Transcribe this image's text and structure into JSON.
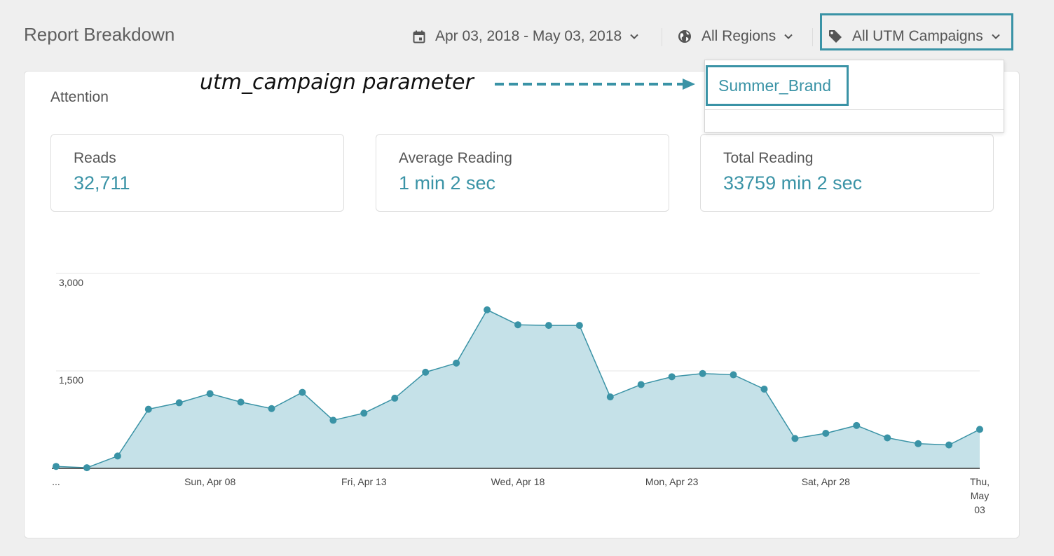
{
  "header": {
    "title": "Report Breakdown",
    "date_range": "Apr 03, 2018 - May 03, 2018",
    "region": "All Regions",
    "campaigns": "All UTM Campaigns"
  },
  "section": {
    "title": "Attention"
  },
  "annotation": {
    "text": "utm_campaign parameter"
  },
  "dropdown": {
    "options": [
      "Summer_Brand"
    ]
  },
  "stats": [
    {
      "label": "Reads",
      "value": "32,711"
    },
    {
      "label": "Average Reading",
      "value": "1 min 2 sec"
    },
    {
      "label": "Total Reading",
      "value": "33759 min 2 sec"
    }
  ],
  "icons": {
    "date": "calendar-icon",
    "region": "globe-icon",
    "campaign": "tag-icon",
    "dropdown": "chevron-down-icon"
  },
  "colors": {
    "accent": "#3a93a6",
    "area_fill": "#c5e1e8",
    "highlight_border": "#3a93a6"
  },
  "chart_data": {
    "type": "area",
    "x": [
      "Apr 03",
      "Apr 04",
      "Apr 05",
      "Apr 06",
      "Apr 07",
      "Apr 08",
      "Apr 09",
      "Apr 10",
      "Apr 11",
      "Apr 12",
      "Apr 13",
      "Apr 14",
      "Apr 15",
      "Apr 16",
      "Apr 17",
      "Apr 18",
      "Apr 19",
      "Apr 20",
      "Apr 21",
      "Apr 22",
      "Apr 23",
      "Apr 24",
      "Apr 25",
      "Apr 26",
      "Apr 27",
      "Apr 28",
      "Apr 29",
      "Apr 30",
      "May 01",
      "May 02",
      "May 03"
    ],
    "values": [
      30,
      10,
      190,
      910,
      1010,
      1150,
      1020,
      920,
      1170,
      740,
      850,
      1080,
      1480,
      1620,
      2440,
      2210,
      2200,
      2200,
      1100,
      1290,
      1410,
      1460,
      1440,
      1220,
      460,
      540,
      660,
      470,
      380,
      360,
      600
    ],
    "ylim": [
      0,
      3000
    ],
    "yticks": [
      {
        "value": 3000,
        "label": "3,000"
      },
      {
        "value": 1500,
        "label": "1,500"
      }
    ],
    "xticks": [
      {
        "index": 0,
        "lines": [
          "..."
        ]
      },
      {
        "index": 5,
        "lines": [
          "Sun, Apr 08"
        ]
      },
      {
        "index": 10,
        "lines": [
          "Fri, Apr 13"
        ]
      },
      {
        "index": 15,
        "lines": [
          "Wed, Apr 18"
        ]
      },
      {
        "index": 20,
        "lines": [
          "Mon, Apr 23"
        ]
      },
      {
        "index": 25,
        "lines": [
          "Sat, Apr 28"
        ]
      },
      {
        "index": 30,
        "lines": [
          "Thu,",
          "May",
          "03"
        ]
      }
    ],
    "grid": true,
    "legend": false
  }
}
